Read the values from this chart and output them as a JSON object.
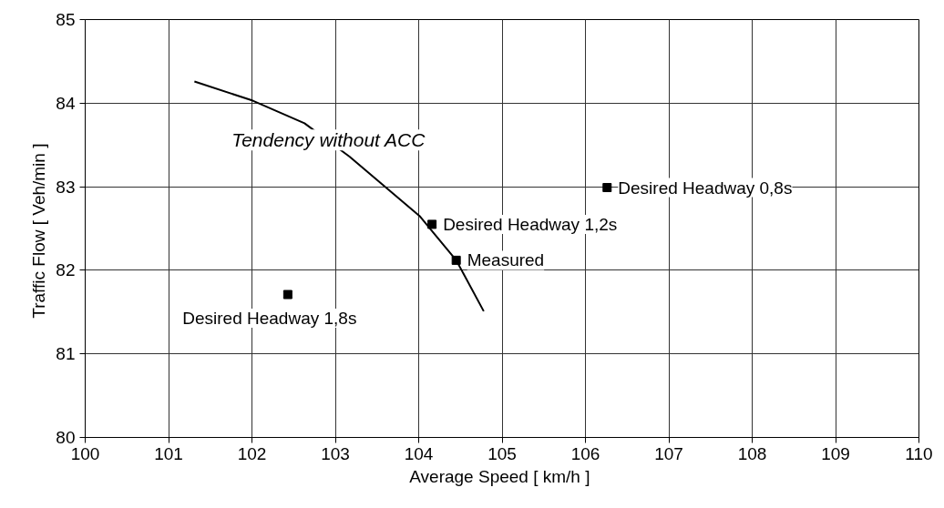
{
  "chart_data": {
    "type": "scatter",
    "xlabel": "Average Speed  [ km/h ]",
    "ylabel": "Traffic Flow  [ Veh/min ]",
    "xlim": [
      100,
      110
    ],
    "ylim": [
      80,
      85
    ],
    "xticks": [
      100,
      101,
      102,
      103,
      104,
      105,
      106,
      107,
      108,
      109,
      110
    ],
    "yticks": [
      80,
      81,
      82,
      83,
      84,
      85
    ],
    "grid": true,
    "marker": "square",
    "series": [
      {
        "color": "#000000",
        "x": [
          102.43,
          104.16,
          104.45,
          106.26
        ],
        "values": [
          81.71,
          82.55,
          82.12,
          82.99
        ]
      },
      {
        "type": "line",
        "color": "#000000",
        "marker": "none",
        "line_style": "solid",
        "x": [
          101.31,
          102.01,
          102.63,
          103.17,
          104.01,
          104.45,
          104.78
        ],
        "values": [
          84.26,
          84.03,
          83.76,
          83.36,
          82.65,
          82.12,
          81.51
        ]
      }
    ],
    "annotations": [
      {
        "text": "Desired Headway 1,8s",
        "x": 102.43,
        "y": 81.71
      },
      {
        "text": "Desired Headway 1,2s",
        "x": 104.16,
        "y": 82.55
      },
      {
        "text": "Measured",
        "x": 104.45,
        "y": 82.12
      },
      {
        "text": "Desired Headway 0,8s",
        "x": 106.26,
        "y": 82.99
      },
      {
        "text": "Tendency without ACC",
        "x": 102.92,
        "y": 83.56
      }
    ]
  }
}
